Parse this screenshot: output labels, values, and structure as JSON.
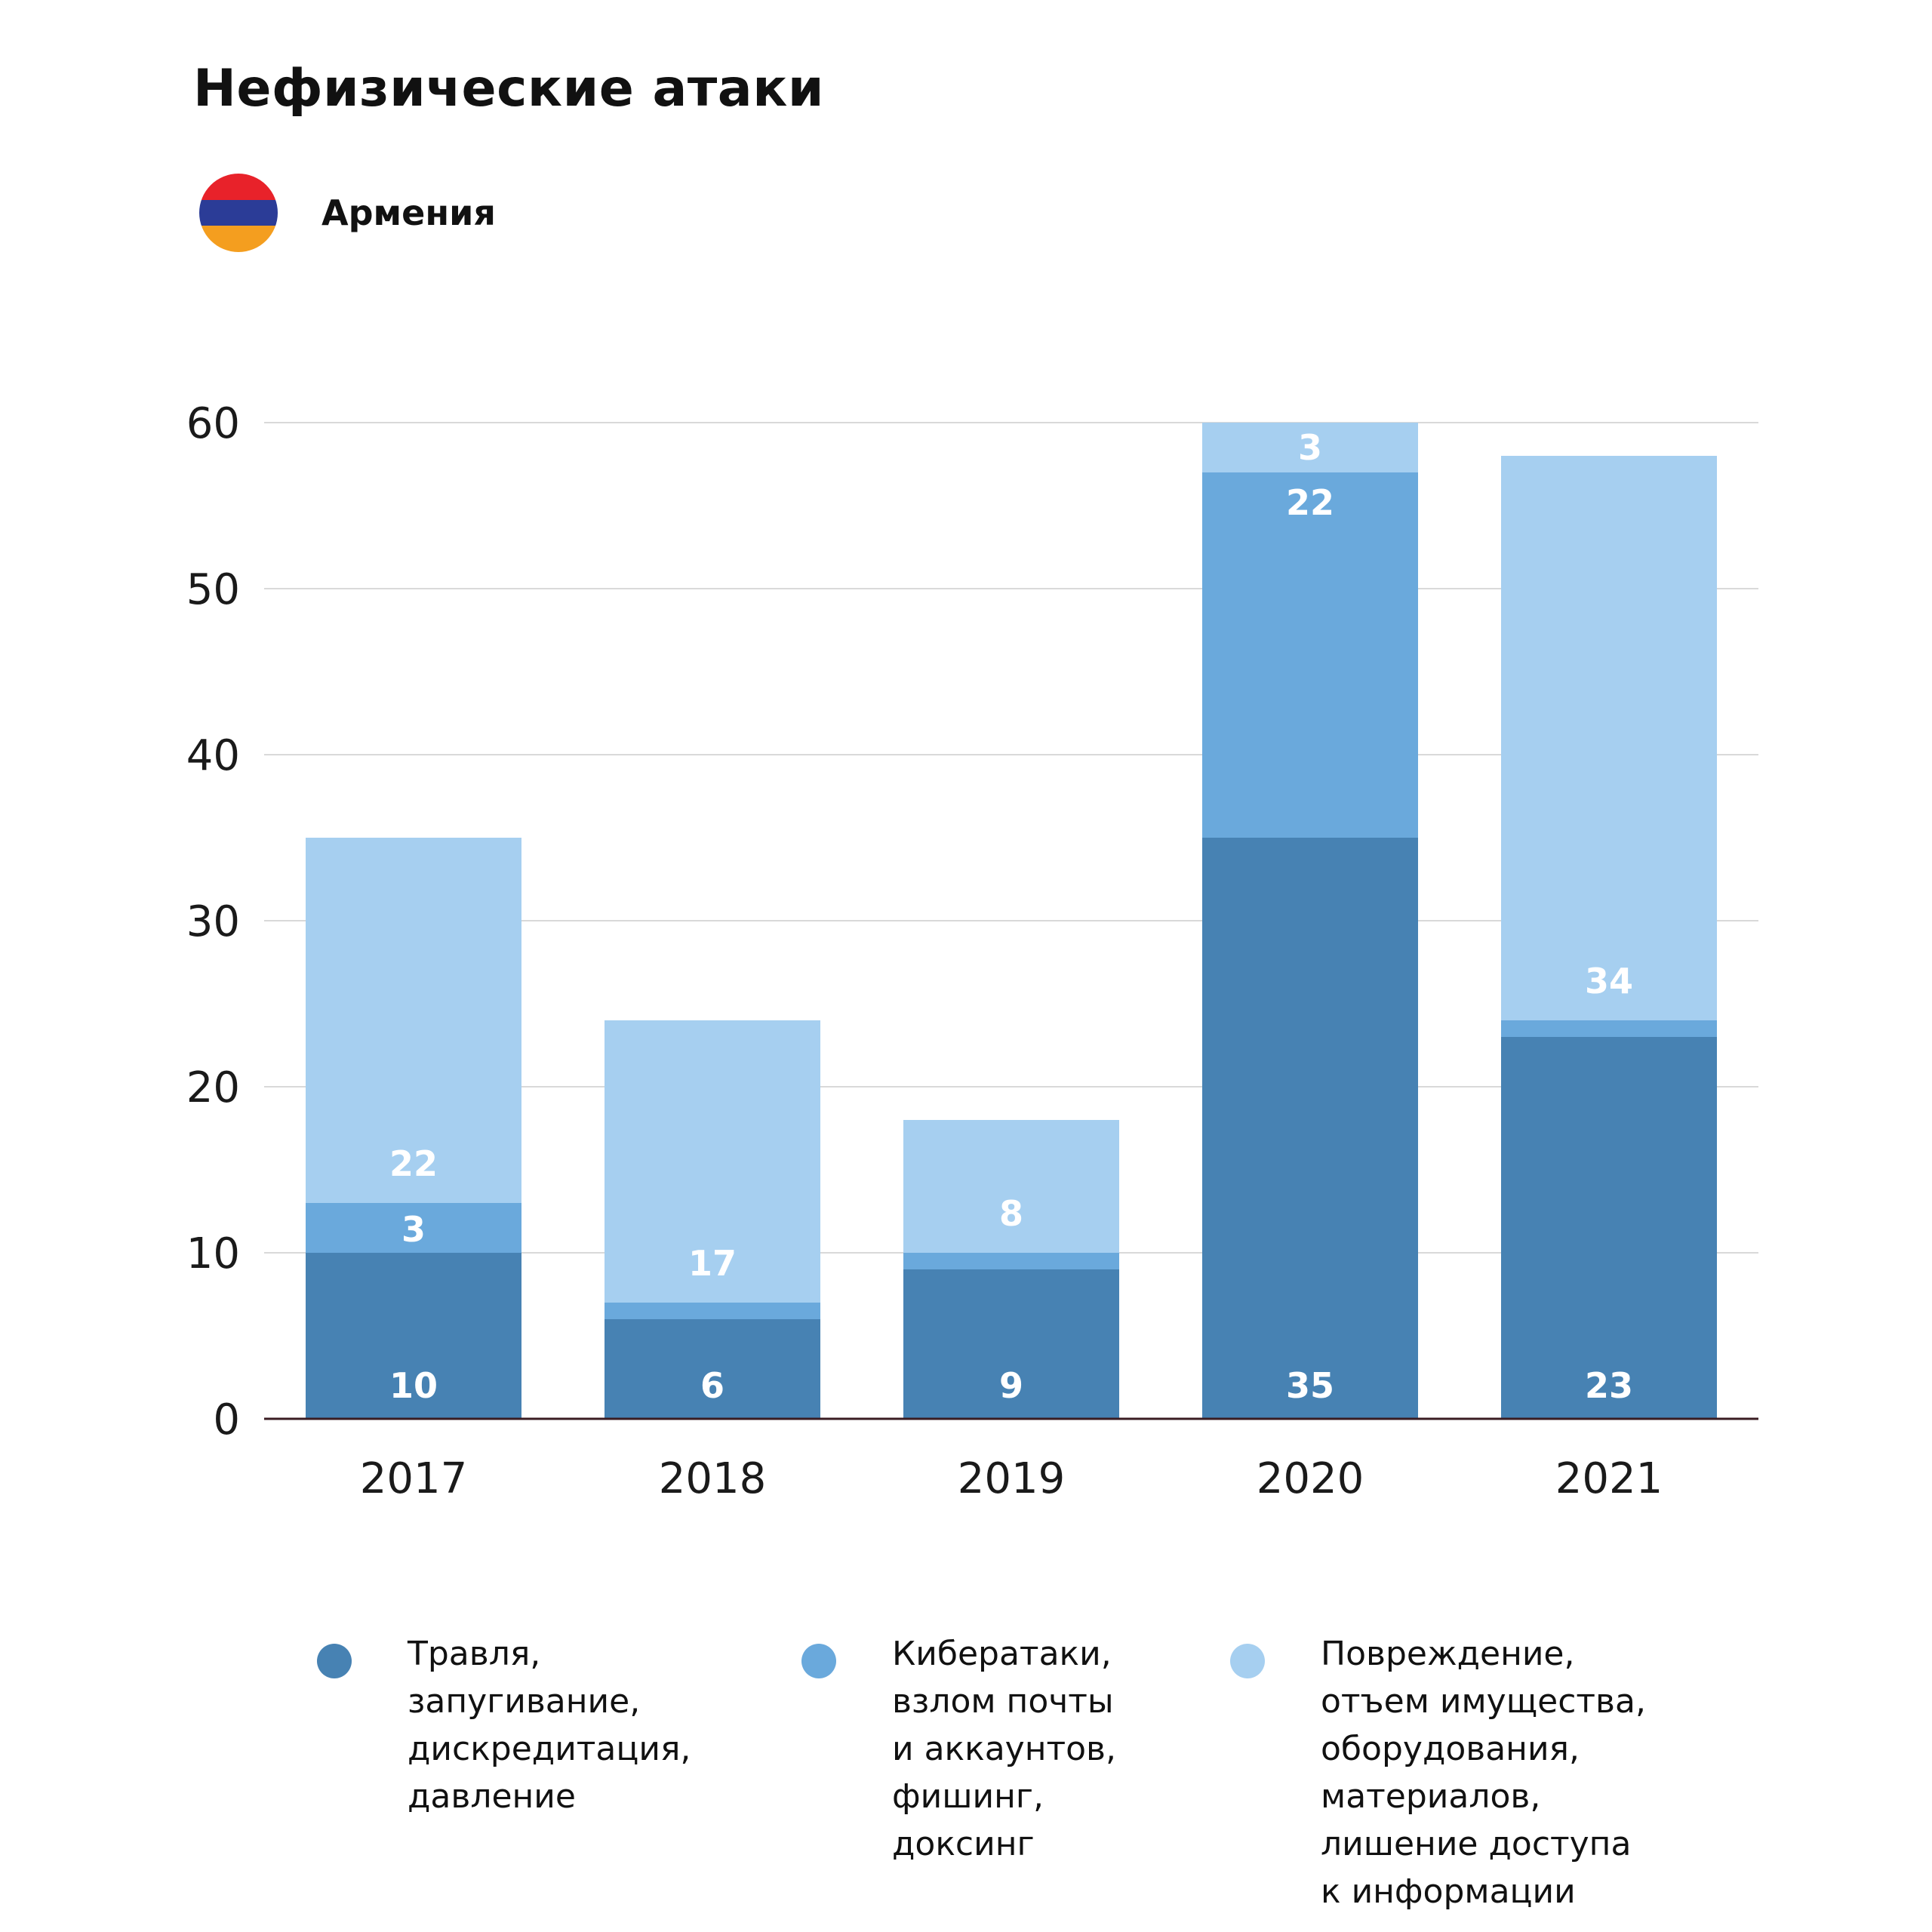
{
  "header": {
    "title": "Нефизические атаки",
    "country": "Армения"
  },
  "flag_colors": [
    "#e8222a",
    "#2b3c97",
    "#f49e1f"
  ],
  "colors": {
    "series": [
      "#4782b3",
      "#6aa9dc",
      "#a6cff0"
    ],
    "grid": "#d9d9d9",
    "axis": "#3a1c22"
  },
  "chart_data": {
    "type": "bar",
    "stacked": true,
    "categories": [
      "2017",
      "2018",
      "2019",
      "2020",
      "2021"
    ],
    "series": [
      {
        "name": "Травля,\nзапугивание,\nдискредитация,\nдавление",
        "values": [
          10,
          6,
          9,
          35,
          23
        ],
        "labels": [
          "10",
          "6",
          "9",
          "35",
          "23"
        ]
      },
      {
        "name": "Кибератаки,\nвзлом почты\nи аккаунтов,\nфишинг,\nдоксинг",
        "values": [
          3,
          1,
          1,
          22,
          1
        ],
        "labels": [
          "3",
          "",
          "",
          "22",
          ""
        ]
      },
      {
        "name": "Повреждение,\nотъем имущества,\nоборудования,\nматериалов,\nлишение доступа\nк информации",
        "values": [
          22,
          17,
          8,
          3,
          34
        ],
        "labels": [
          "22",
          "17",
          "8",
          "3",
          "34"
        ]
      }
    ],
    "ylim": [
      0,
      60
    ],
    "yticks": [
      0,
      10,
      20,
      30,
      40,
      50,
      60
    ],
    "ytick_labels": [
      "0",
      "10",
      "20",
      "30",
      "40",
      "50",
      "60"
    ],
    "grid": true,
    "legend_position": "bottom"
  }
}
